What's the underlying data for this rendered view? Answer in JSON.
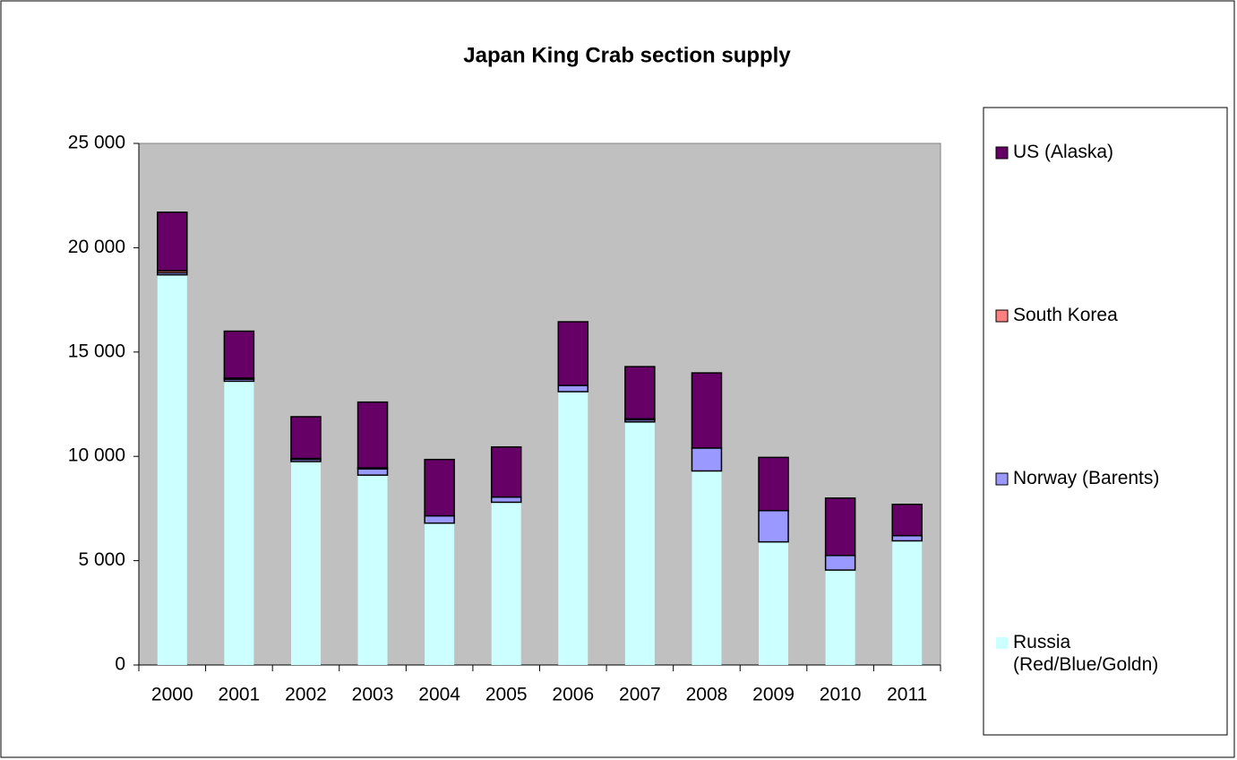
{
  "chart_data": {
    "type": "stacked_bar",
    "title": "Japan King Crab section supply",
    "categories": [
      "2000",
      "2001",
      "2002",
      "2003",
      "2004",
      "2005",
      "2006",
      "2007",
      "2008",
      "2009",
      "2010",
      "2011"
    ],
    "series": [
      {
        "name": "Russia (Red/Blue/Goldn)",
        "color": "#ccffff",
        "values": [
          18700,
          13600,
          9750,
          9100,
          6800,
          7800,
          13100,
          11650,
          9300,
          5900,
          4550,
          5950
        ]
      },
      {
        "name": "Norway (Barents)",
        "color": "#9999ff",
        "values": [
          100,
          100,
          100,
          300,
          350,
          250,
          300,
          100,
          1100,
          1500,
          700,
          250
        ]
      },
      {
        "name": "South Korea",
        "color": "#ff8080",
        "values": [
          100,
          50,
          50,
          50,
          0,
          0,
          0,
          50,
          0,
          0,
          0,
          0
        ]
      },
      {
        "name": "US (Alaska)",
        "color": "#660066",
        "values": [
          2800,
          2250,
          2000,
          3150,
          2700,
          2400,
          3050,
          2500,
          3600,
          2550,
          2750,
          1500
        ]
      }
    ],
    "ylim": [
      0,
      25000
    ],
    "yticks": [
      0,
      {
        "value": 5000,
        "label": "5 000"
      },
      {
        "value": 10000,
        "label": "10 000"
      },
      {
        "value": 15000,
        "label": "15 000"
      },
      {
        "value": 20000,
        "label": "20 000"
      },
      {
        "value": 25000,
        "label": "25 000"
      }
    ],
    "plot_background": "#c0c0c0"
  }
}
